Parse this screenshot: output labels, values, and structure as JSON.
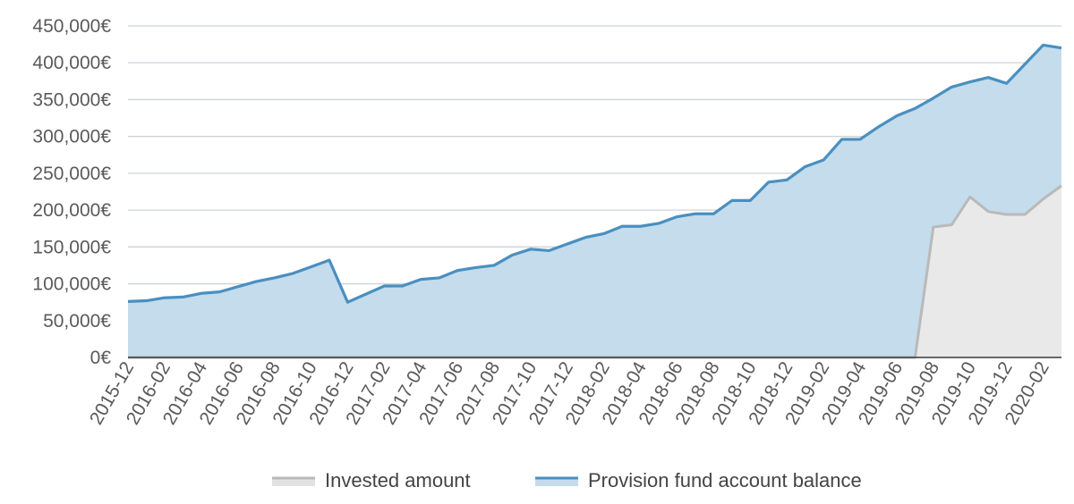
{
  "chart_data": {
    "type": "area",
    "title": "",
    "xlabel": "",
    "ylabel": "",
    "ylim": [
      0,
      450000
    ],
    "grid": true,
    "legend_position": "bottom",
    "y_ticks": [
      "0€",
      "50,000€",
      "100,000€",
      "150,000€",
      "200,000€",
      "250,000€",
      "300,000€",
      "350,000€",
      "400,000€",
      "450,000€"
    ],
    "y_tick_values": [
      0,
      50000,
      100000,
      150000,
      200000,
      250000,
      300000,
      350000,
      400000,
      450000
    ],
    "x": [
      "2015-12",
      "2016-01",
      "2016-02",
      "2016-03",
      "2016-04",
      "2016-05",
      "2016-06",
      "2016-07",
      "2016-08",
      "2016-09",
      "2016-10",
      "2016-11",
      "2016-12",
      "2017-01",
      "2017-02",
      "2017-03",
      "2017-04",
      "2017-05",
      "2017-06",
      "2017-07",
      "2017-08",
      "2017-09",
      "2017-10",
      "2017-11",
      "2017-12",
      "2018-01",
      "2018-02",
      "2018-03",
      "2018-04",
      "2018-05",
      "2018-06",
      "2018-07",
      "2018-08",
      "2018-09",
      "2018-10",
      "2018-11",
      "2018-12",
      "2019-01",
      "2019-02",
      "2019-03",
      "2019-04",
      "2019-05",
      "2019-06",
      "2019-07",
      "2019-08",
      "2019-09",
      "2019-10",
      "2019-11",
      "2019-12",
      "2020-01",
      "2020-02",
      "2020-03"
    ],
    "x_tick_labels": [
      "2015-12",
      "2016-02",
      "2016-04",
      "2016-06",
      "2016-08",
      "2016-10",
      "2016-12",
      "2017-02",
      "2017-04",
      "2017-06",
      "2017-08",
      "2017-10",
      "2017-12",
      "2018-02",
      "2018-04",
      "2018-06",
      "2018-08",
      "2018-10",
      "2018-12",
      "2019-02",
      "2019-04",
      "2019-06",
      "2019-08",
      "2019-10",
      "2019-12",
      "2020-02"
    ],
    "series": [
      {
        "name": "Invested amount",
        "color": "#b9b9b9",
        "fill": "#e9e9e9",
        "values": [
          0,
          0,
          0,
          0,
          0,
          0,
          0,
          0,
          0,
          0,
          0,
          0,
          0,
          0,
          0,
          0,
          0,
          0,
          0,
          0,
          0,
          0,
          0,
          0,
          0,
          0,
          0,
          0,
          0,
          0,
          0,
          0,
          0,
          0,
          0,
          0,
          0,
          0,
          0,
          0,
          0,
          0,
          0,
          0,
          177000,
          180000,
          218000,
          198000,
          194000,
          194000,
          215000,
          233000
        ]
      },
      {
        "name": "Provision fund account balance",
        "color": "#4a8fc0",
        "fill": "#c4dcec",
        "values": [
          76000,
          77000,
          81000,
          82000,
          87000,
          89000,
          96000,
          103000,
          108000,
          114000,
          123000,
          132000,
          75000,
          86000,
          97000,
          97000,
          106000,
          108000,
          118000,
          122000,
          125000,
          139000,
          147000,
          145000,
          154000,
          163000,
          168000,
          178000,
          178000,
          182000,
          191000,
          195000,
          195000,
          213000,
          213000,
          238000,
          241000,
          259000,
          268000,
          296000,
          296000,
          313000,
          328000,
          338000,
          352000,
          367000,
          374000,
          380000,
          372000,
          398000,
          424000,
          420000
        ]
      }
    ]
  }
}
